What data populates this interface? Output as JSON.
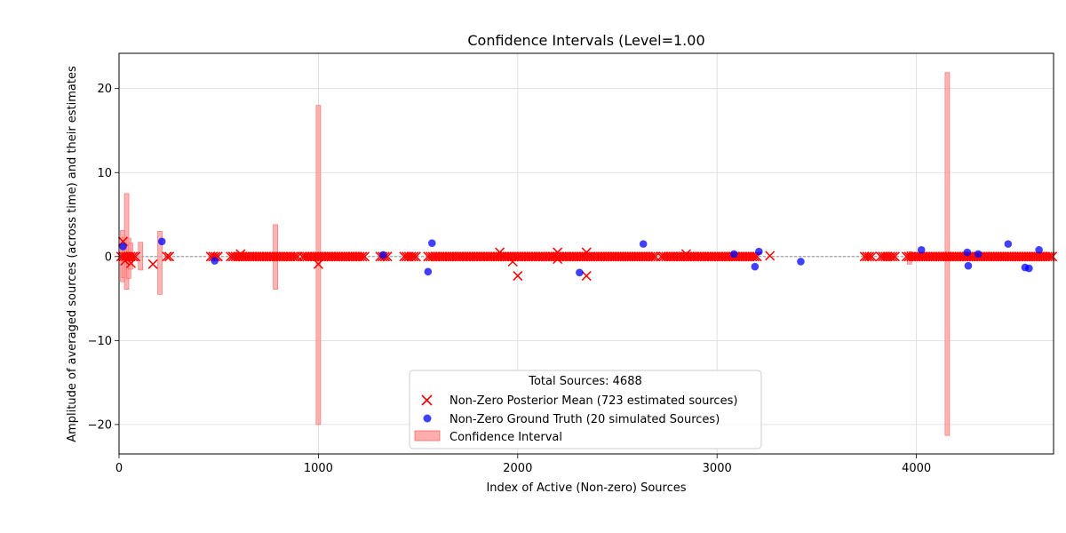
{
  "chart_data": {
    "type": "scatter",
    "title": "Confidence Intervals (Level=1.00",
    "xlabel": "Index of Active (Non-zero) Sources",
    "ylabel": "Amplitude of averaged sources (across time) and their estimates",
    "xlim": [
      0,
      4688
    ],
    "ylim": [
      -23.5,
      24.2
    ],
    "xticks": [
      0,
      1000,
      2000,
      3000,
      4000
    ],
    "yticks": [
      -20,
      -10,
      0,
      10,
      20
    ],
    "grid": true,
    "legend": {
      "placement": "lower-center",
      "title": "Total Sources: 4688",
      "entries": [
        "Non-Zero Posterior Mean (723 estimated sources)",
        "Non-Zero Ground Truth (20 simulated Sources)",
        "Confidence Interval"
      ]
    },
    "colors": {
      "posterior_mean": "#ff0000",
      "ground_truth": "#0000ff",
      "interval": "#ff9999",
      "zero_line": "#808080"
    },
    "zero_line_y": 0,
    "posterior_mean_dense_ranges": [
      [
        10,
        90
      ],
      [
        240,
        260
      ],
      [
        460,
        500
      ],
      [
        560,
        900
      ],
      [
        920,
        1240
      ],
      [
        1310,
        1350
      ],
      [
        1430,
        1500
      ],
      [
        1550,
        2700
      ],
      [
        2720,
        3200
      ],
      [
        3740,
        3780
      ],
      [
        3820,
        3900
      ],
      [
        3950,
        4688
      ]
    ],
    "posterior_mean_outliers": [
      {
        "x": 20,
        "y": 1.8
      },
      {
        "x": 30,
        "y": -0.5
      },
      {
        "x": 60,
        "y": -0.8
      },
      {
        "x": 170,
        "y": -0.9
      },
      {
        "x": 610,
        "y": 0.3
      },
      {
        "x": 1000,
        "y": -0.9
      },
      {
        "x": 1910,
        "y": 0.5
      },
      {
        "x": 1975,
        "y": -0.6
      },
      {
        "x": 2000,
        "y": -2.3
      },
      {
        "x": 2200,
        "y": 0.5
      },
      {
        "x": 2200,
        "y": -0.3
      },
      {
        "x": 2345,
        "y": 0.5
      },
      {
        "x": 2345,
        "y": -2.3
      },
      {
        "x": 2845,
        "y": 0.3
      },
      {
        "x": 3265,
        "y": 0.1
      }
    ],
    "ground_truth": [
      {
        "x": 20,
        "y": 1.2
      },
      {
        "x": 215,
        "y": 1.8
      },
      {
        "x": 480,
        "y": -0.5
      },
      {
        "x": 1325,
        "y": 0.2
      },
      {
        "x": 1550,
        "y": -1.8
      },
      {
        "x": 1570,
        "y": 1.6
      },
      {
        "x": 2310,
        "y": -1.9
      },
      {
        "x": 2630,
        "y": 1.5
      },
      {
        "x": 3085,
        "y": 0.3
      },
      {
        "x": 3190,
        "y": -1.2
      },
      {
        "x": 3210,
        "y": 0.6
      },
      {
        "x": 3420,
        "y": -0.6
      },
      {
        "x": 4025,
        "y": 0.8
      },
      {
        "x": 4255,
        "y": 0.5
      },
      {
        "x": 4260,
        "y": -1.1
      },
      {
        "x": 4310,
        "y": 0.3
      },
      {
        "x": 4460,
        "y": 1.5
      },
      {
        "x": 4545,
        "y": -1.3
      },
      {
        "x": 4565,
        "y": -1.4
      },
      {
        "x": 4615,
        "y": 0.8
      }
    ],
    "intervals": [
      {
        "x": 18,
        "low": -3.0,
        "high": 3.1
      },
      {
        "x": 25,
        "low": -2.5,
        "high": 2.3
      },
      {
        "x": 38,
        "low": -3.9,
        "high": 7.5
      },
      {
        "x": 48,
        "low": -2.6,
        "high": 2.2
      },
      {
        "x": 58,
        "low": -1.5,
        "high": 1.6
      },
      {
        "x": 108,
        "low": -1.6,
        "high": 1.7
      },
      {
        "x": 205,
        "low": -4.5,
        "high": 3.0
      },
      {
        "x": 785,
        "low": -3.9,
        "high": 3.8
      },
      {
        "x": 1000,
        "low": -20.0,
        "high": 18.0
      },
      {
        "x": 3965,
        "low": -0.9,
        "high": 0.6
      },
      {
        "x": 4155,
        "low": -21.3,
        "high": 21.9
      }
    ]
  }
}
